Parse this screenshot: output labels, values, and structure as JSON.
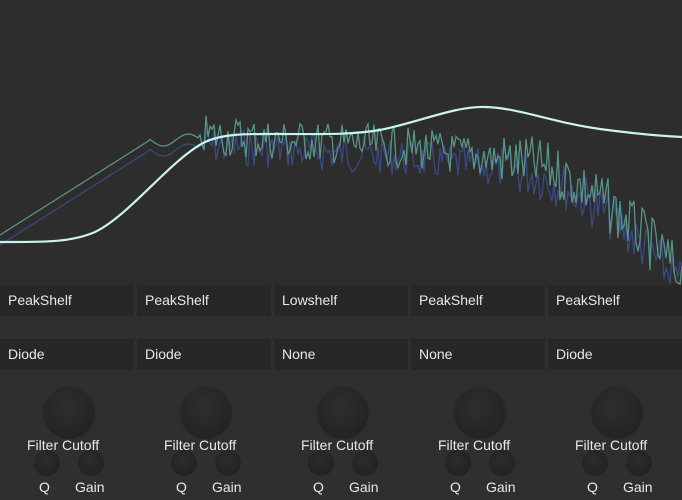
{
  "bands": [
    {
      "filter_type": "PeakShelf",
      "drive": "Diode",
      "cutoff_label": "Filter Cutoff",
      "q_label": "Q",
      "gain_label": "Gain"
    },
    {
      "filter_type": "PeakShelf",
      "drive": "Diode",
      "cutoff_label": "Filter Cutoff",
      "q_label": "Q",
      "gain_label": "Gain"
    },
    {
      "filter_type": "Lowshelf",
      "drive": "None",
      "cutoff_label": "Filter Cutoff",
      "q_label": "Q",
      "gain_label": "Gain"
    },
    {
      "filter_type": "PeakShelf",
      "drive": "None",
      "cutoff_label": "Filter Cutoff",
      "q_label": "Q",
      "gain_label": "Gain"
    },
    {
      "filter_type": "PeakShelf",
      "drive": "Diode",
      "cutoff_label": "Filter Cutoff",
      "q_label": "Q",
      "gain_label": "Gain"
    }
  ],
  "colors": {
    "curve": "#c8f5ea",
    "spectrum_green": "#5a9a8a",
    "spectrum_blue": "#3c4d8c",
    "background": "#2f2f2f",
    "cell": "#272727"
  }
}
